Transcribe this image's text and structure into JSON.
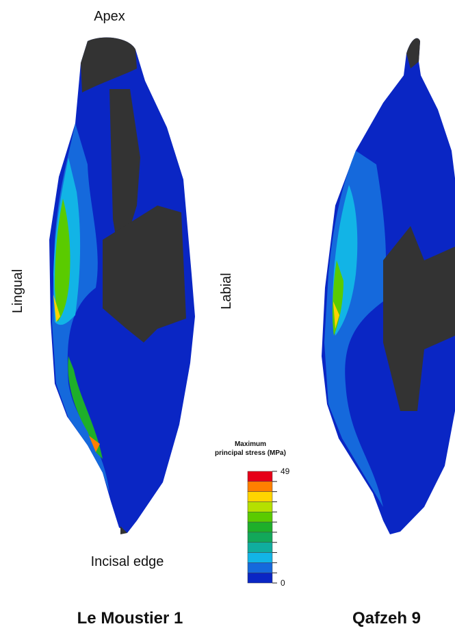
{
  "labels": {
    "apex": "Apex",
    "lingual": "Lingual",
    "labial": "Labial",
    "incisal": "Incisal edge"
  },
  "specimens": [
    "Le Moustier 1",
    "Qafzeh 9"
  ],
  "colorbar": {
    "title_line1": "Maximum",
    "title_line2": "principal stress (MPa)",
    "min": 0,
    "max": 49,
    "colors": [
      "#e60018",
      "#ff7f00",
      "#ffd400",
      "#b5e000",
      "#5acb00",
      "#1eaf2a",
      "#12a85a",
      "#10ad9e",
      "#12b4e6",
      "#1569dc",
      "#0a26c4"
    ]
  }
}
